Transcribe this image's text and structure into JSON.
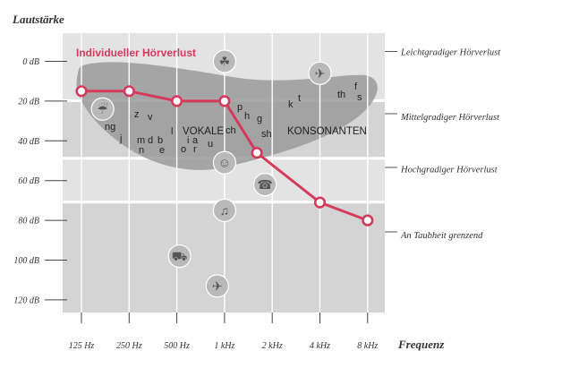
{
  "chart_data": {
    "type": "line",
    "ylabel": "Lautstärke",
    "xlabel": "Frequenz",
    "categories": [
      "125 Hz",
      "250 Hz",
      "500 Hz",
      "1 kHz",
      "2 kHz",
      "4 kHz",
      "8 kHz"
    ],
    "x_scale": "log2",
    "y_ticks": [
      "0 dB",
      "20 dB",
      "40 dB",
      "60 dB",
      "80 dB",
      "100 dB",
      "120 dB"
    ],
    "y_tick_values": [
      0,
      20,
      40,
      60,
      80,
      100,
      120
    ],
    "y_inverted": true,
    "series": [
      {
        "name": "Individueller Hörverlust",
        "color": "#d63a5b",
        "points": [
          {
            "freq_hz": 125,
            "db": 15
          },
          {
            "freq_hz": 250,
            "db": 15
          },
          {
            "freq_hz": 500,
            "db": 20
          },
          {
            "freq_hz": 1000,
            "db": 20
          },
          {
            "freq_hz": 1600,
            "db": 46
          },
          {
            "freq_hz": 4000,
            "db": 71
          },
          {
            "freq_hz": 8000,
            "db": 80
          }
        ]
      }
    ],
    "bands": [
      {
        "label": "Leichtgradiger Hörverlust",
        "from_db": -8,
        "to_db": 20
      },
      {
        "label": "Mittelgradiger Hörverlust",
        "from_db": 20,
        "to_db": 49
      },
      {
        "label": "Hochgradiger Hörverlust",
        "from_db": 49,
        "to_db": 71
      },
      {
        "label": "An Taubheit grenzend",
        "from_db": 71,
        "to_db": 128
      }
    ],
    "speech_banana": {
      "vowels_label": "VOKALE",
      "consonants_label": "KONSONANTEN",
      "phonemes": [
        "z",
        "v",
        "ng",
        "j",
        "m",
        "d",
        "b",
        "n",
        "e",
        "l",
        "i",
        "a",
        "o",
        "r",
        "u",
        "ch",
        "p",
        "h",
        "g",
        "sh",
        "k",
        "t",
        "th",
        "f",
        "s"
      ]
    },
    "icons": [
      {
        "name": "dripping-faucet-icon",
        "freq_hz": 170,
        "db": 24
      },
      {
        "name": "leaf-icon",
        "freq_hz": 1000,
        "db": 0
      },
      {
        "name": "bird-icon",
        "freq_hz": 4000,
        "db": 6
      },
      {
        "name": "talking-person-icon",
        "freq_hz": 1000,
        "db": 51
      },
      {
        "name": "telephone-icon",
        "freq_hz": 1800,
        "db": 62
      },
      {
        "name": "music-icon",
        "freq_hz": 1000,
        "db": 75
      },
      {
        "name": "motorcycle-icon",
        "freq_hz": 520,
        "db": 98
      },
      {
        "name": "airplane-icon",
        "freq_hz": 900,
        "db": 113
      }
    ],
    "colors": {
      "plot_background": "#e3e3e3",
      "band_alternate": "#d4d4d4",
      "banana": "#9a9a9a",
      "line": "#d63a5b",
      "icon_fill": "#b9b9b9"
    }
  }
}
